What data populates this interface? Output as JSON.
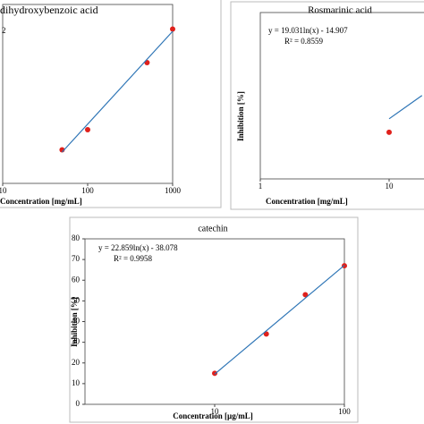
{
  "chart_data": [
    {
      "type": "scatter",
      "title": "dihydroxybenzoic acid",
      "xlabel": "Concentration [mg/mL]",
      "annotations": [
        "2"
      ],
      "log_x": true,
      "xlim": [
        10,
        1000
      ],
      "xticks": [
        10,
        100,
        1000
      ],
      "ylim": [
        0,
        80
      ],
      "series": [
        {
          "style": "markers",
          "color": "#e0201b",
          "x": [
            50,
            100,
            500,
            1000
          ],
          "values": [
            15,
            24,
            54,
            69
          ]
        },
        {
          "style": "line",
          "color": "#2e75b6",
          "x": [
            50,
            1000
          ],
          "values": [
            14,
            68
          ]
        }
      ]
    },
    {
      "type": "scatter",
      "title": "Rosmarinic acid",
      "xlabel": "Concentration [mg/mL]",
      "ylabel": "Inhibition [%]",
      "annotations": [
        "y = 19.031ln(x) - 14.907",
        "R² = 0.8559"
      ],
      "log_x": true,
      "xlim": [
        1,
        100
      ],
      "xticks": [
        1,
        10
      ],
      "ylim": [
        0,
        80
      ],
      "series": [
        {
          "style": "markers",
          "color": "#e0201b",
          "x": [
            10
          ],
          "values": [
            22.4
          ]
        },
        {
          "style": "line",
          "color": "#2e75b6",
          "x": [
            10,
            18
          ],
          "values": [
            28.9,
            40.1
          ]
        }
      ]
    },
    {
      "type": "scatter",
      "title": "catechin",
      "xlabel": "Concentration [µg/mL]",
      "ylabel": "Inhibition [%]",
      "annotations": [
        "y = 22.859ln(x) - 38.078",
        "R² = 0.9958"
      ],
      "log_x": true,
      "xlim": [
        1,
        100
      ],
      "xticks": [
        10,
        100
      ],
      "ylim": [
        0,
        80
      ],
      "yticks": [
        0,
        10,
        20,
        30,
        40,
        50,
        60,
        70,
        80
      ],
      "series": [
        {
          "style": "markers",
          "color": "#e0201b",
          "x": [
            10,
            25,
            50,
            100
          ],
          "values": [
            15,
            34,
            53,
            67
          ]
        },
        {
          "style": "line",
          "color": "#2e75b6",
          "x": [
            10,
            100
          ],
          "values": [
            14.6,
            67.2
          ]
        }
      ]
    }
  ]
}
